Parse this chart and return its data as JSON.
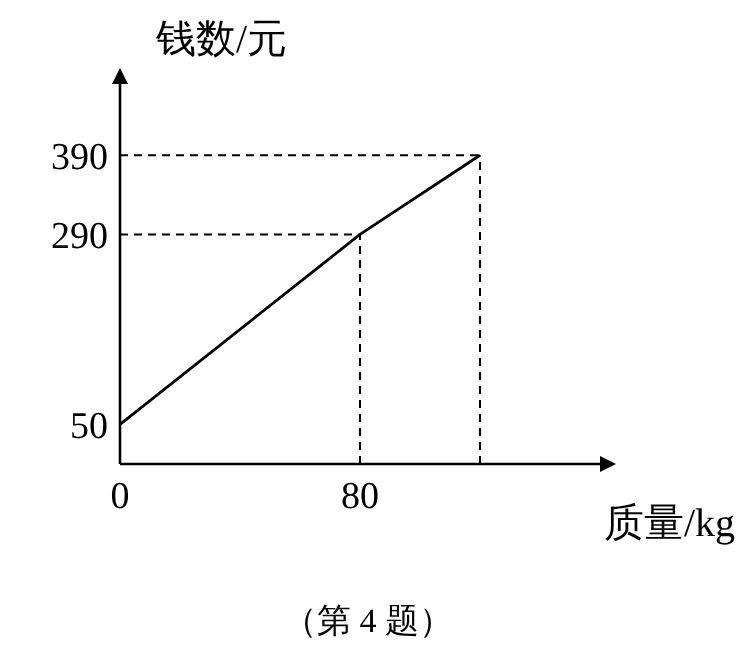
{
  "chart_data": {
    "type": "line",
    "ylabel": "钱数/元",
    "xlabel": "质量/kg",
    "annotations": [
      "（第 4 题）"
    ],
    "x": [
      0,
      80,
      120
    ],
    "series": [
      {
        "color": "#000000",
        "values": [
          50,
          290,
          390
        ]
      }
    ],
    "xlim": [
      0,
      160
    ],
    "ylim": [
      0,
      480
    ],
    "xticks": [
      0,
      80
    ],
    "yticks": [
      50,
      290,
      390
    ],
    "ref_lines": [
      {
        "axis": "y",
        "value": 290,
        "line_style": "dashed"
      },
      {
        "axis": "y",
        "value": 390,
        "line_style": "dashed"
      },
      {
        "axis": "x",
        "value": 80,
        "line_style": "dashed"
      },
      {
        "axis": "x",
        "value": 120,
        "line_style": "dashed"
      }
    ]
  }
}
